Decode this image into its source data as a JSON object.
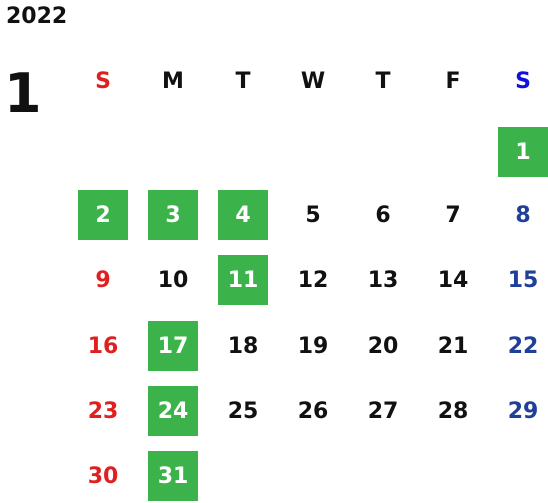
{
  "calendar": {
    "year": "2022",
    "month": "1",
    "weekdays": [
      "S",
      "M",
      "T",
      "W",
      "T",
      "F",
      "S"
    ],
    "weeks": [
      [
        "",
        "",
        "",
        "",
        "",
        "",
        "1"
      ],
      [
        "2",
        "3",
        "4",
        "5",
        "6",
        "7",
        "8"
      ],
      [
        "9",
        "10",
        "11",
        "12",
        "13",
        "14",
        "15"
      ],
      [
        "16",
        "17",
        "18",
        "19",
        "20",
        "21",
        "22"
      ],
      [
        "23",
        "24",
        "25",
        "26",
        "27",
        "28",
        "29"
      ],
      [
        "30",
        "31",
        "",
        "",
        "",
        "",
        ""
      ]
    ],
    "highlighted_days": [
      "1",
      "2",
      "3",
      "4",
      "11",
      "17",
      "24",
      "31"
    ],
    "colors": {
      "highlight": "#3cb34a",
      "sunday": "#e02020",
      "saturday": "#1f3f99",
      "saturday_header": "#1010e0",
      "regular": "#111111"
    }
  }
}
